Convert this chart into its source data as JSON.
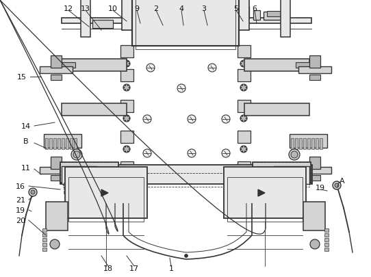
{
  "background_color": "#ffffff",
  "line_color": "#333333",
  "fig_width": 5.42,
  "fig_height": 4.06,
  "dpi": 100,
  "gray1": "#e8e8e8",
  "gray2": "#d4d4d4",
  "gray3": "#b8b8b8",
  "gray4": "#a0a0a0",
  "gray5": "#888888"
}
